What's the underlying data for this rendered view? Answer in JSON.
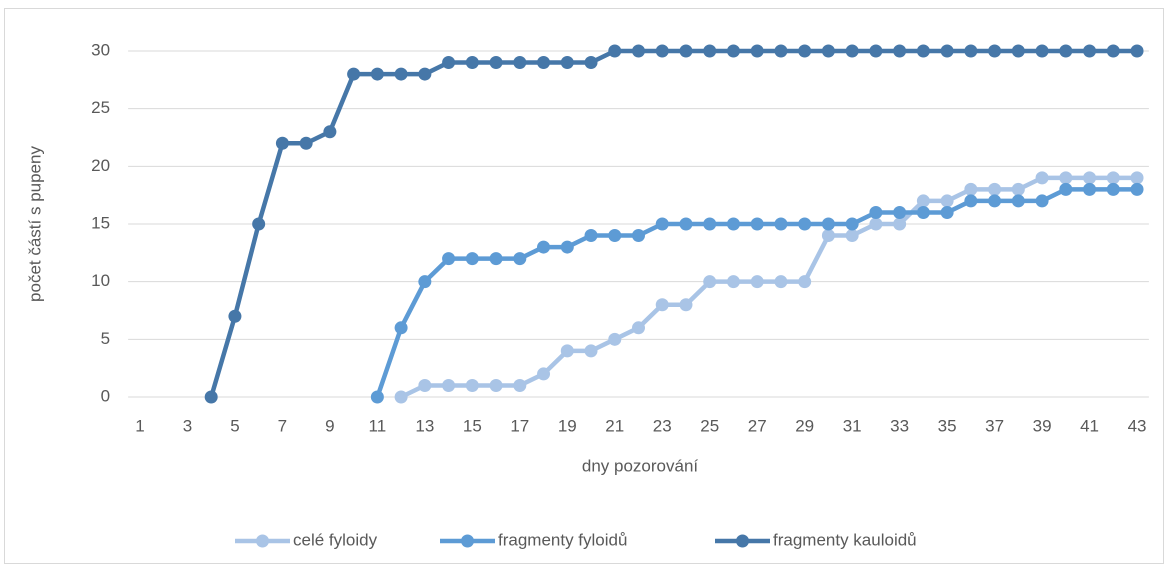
{
  "chart_data": {
    "type": "line",
    "x_label": "dny pozorování",
    "y_label": "počet částí s pupeny",
    "categories": [
      1,
      null,
      3,
      null,
      5,
      null,
      7,
      null,
      9,
      null,
      11,
      null,
      13,
      null,
      15,
      null,
      17,
      null,
      19,
      null,
      21,
      null,
      23,
      null,
      25,
      null,
      27,
      null,
      29,
      null,
      31,
      null,
      33,
      null,
      35,
      null,
      37,
      null,
      39,
      null,
      41,
      null,
      43
    ],
    "series": [
      {
        "name": "celé fyloidy",
        "color": "#a9c4e6",
        "values": [
          null,
          null,
          null,
          null,
          null,
          null,
          null,
          null,
          null,
          null,
          null,
          0,
          1,
          1,
          1,
          1,
          1,
          2,
          4,
          4,
          5,
          6,
          8,
          8,
          10,
          10,
          10,
          10,
          10,
          14,
          14,
          15,
          15,
          17,
          17,
          18,
          18,
          18,
          19,
          19,
          19,
          19,
          19
        ]
      },
      {
        "name": "fragmenty fyloidů",
        "color": "#5d9bd5",
        "values": [
          null,
          null,
          null,
          null,
          null,
          null,
          null,
          null,
          null,
          null,
          0,
          6,
          10,
          12,
          12,
          12,
          12,
          13,
          13,
          14,
          14,
          14,
          15,
          15,
          15,
          15,
          15,
          15,
          15,
          15,
          15,
          16,
          16,
          16,
          16,
          17,
          17,
          17,
          17,
          18,
          18,
          18,
          18
        ]
      },
      {
        "name": "fragmenty kauloidů",
        "color": "#4677a8",
        "values": [
          null,
          null,
          null,
          0,
          7,
          15,
          22,
          22,
          23,
          28,
          28,
          28,
          28,
          29,
          29,
          29,
          29,
          29,
          29,
          29,
          30,
          30,
          30,
          30,
          30,
          30,
          30,
          30,
          30,
          30,
          30,
          30,
          30,
          30,
          30,
          30,
          30,
          30,
          30,
          30,
          30,
          30,
          30
        ]
      }
    ],
    "ylim": [
      0,
      30
    ],
    "yticks": [
      0,
      5,
      10,
      15,
      20,
      25,
      30
    ],
    "grid": true,
    "legend": "bottom"
  }
}
